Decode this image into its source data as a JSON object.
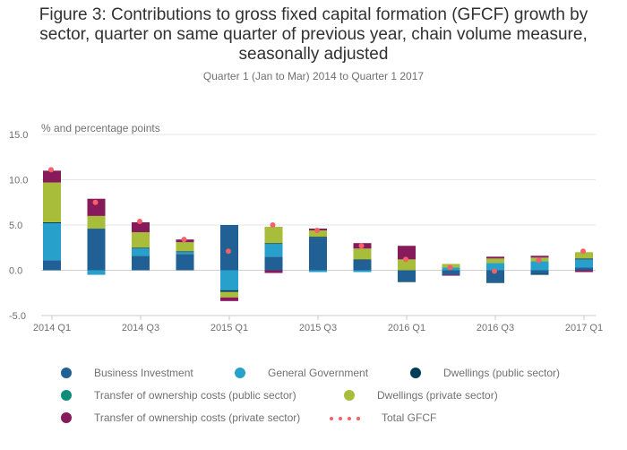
{
  "title": "Figure 3: Contributions to gross fixed capital formation (GFCF) growth by sector, quarter on same quarter of previous year, chain volume measure, seasonally adjusted",
  "subtitle": "Quarter 1 (Jan to Mar) 2014 to Quarter 1 2017",
  "chart_data": {
    "type": "bar",
    "stacked": true,
    "ylabel": "% and percentage points",
    "ylim": [
      -5,
      15
    ],
    "yticks": [
      "15.0",
      "10.0",
      "5.0",
      "0.0",
      "-5.0"
    ],
    "ytick_values": [
      15,
      10,
      5,
      0,
      -5
    ],
    "grid": true,
    "categories": [
      "2014 Q1",
      "2014 Q2",
      "2014 Q3",
      "2014 Q4",
      "2015 Q1",
      "2015 Q2",
      "2015 Q3",
      "2015 Q4",
      "2016 Q1",
      "2016 Q2",
      "2016 Q3",
      "2016 Q4",
      "2017 Q1"
    ],
    "xtick_labels": [
      "2014 Q1",
      "",
      "2014 Q3",
      "",
      "2015 Q1",
      "",
      "2015 Q3",
      "",
      "2016 Q1",
      "",
      "2016 Q3",
      "",
      "2017 Q1"
    ],
    "series": [
      {
        "name": "Business Investment",
        "color": "#206095",
        "values": [
          1.1,
          4.6,
          1.6,
          1.8,
          5.0,
          1.5,
          3.6,
          1.1,
          -1.2,
          -0.5,
          -1.3,
          -0.4,
          0.3
        ]
      },
      {
        "name": "General Government",
        "color": "#27a0cc",
        "values": [
          4.1,
          -0.5,
          0.8,
          0.2,
          -2.2,
          1.4,
          -0.2,
          -0.2,
          0.0,
          0.3,
          0.8,
          1.0,
          0.9
        ]
      },
      {
        "name": "Dwellings (public sector)",
        "color": "#003c57",
        "values": [
          0.1,
          0.0,
          0.1,
          0.1,
          -0.2,
          0.1,
          0.1,
          0.1,
          -0.1,
          0.0,
          -0.1,
          -0.1,
          0.1
        ]
      },
      {
        "name": "Transfer of ownership costs (public sector)",
        "color": "#118c7b",
        "values": [
          0.0,
          0.0,
          0.0,
          0.0,
          0.0,
          0.0,
          0.0,
          0.0,
          0.0,
          0.0,
          0.0,
          0.0,
          0.0
        ]
      },
      {
        "name": "Dwellings (private sector)",
        "color": "#a8bd3a",
        "values": [
          4.4,
          1.4,
          1.7,
          1.0,
          -0.6,
          1.8,
          0.7,
          1.2,
          1.2,
          0.4,
          0.5,
          0.4,
          0.7
        ]
      },
      {
        "name": "Transfer of ownership costs (private sector)",
        "color": "#871a5b",
        "values": [
          1.3,
          1.9,
          1.1,
          0.3,
          -0.4,
          -0.3,
          0.2,
          0.6,
          1.5,
          -0.1,
          0.2,
          0.2,
          -0.2
        ]
      }
    ],
    "total": {
      "name": "Total GFCF",
      "color": "#f66068",
      "values": [
        11.1,
        7.5,
        5.4,
        3.4,
        2.1,
        5.0,
        4.4,
        2.7,
        1.2,
        0.3,
        -0.1,
        1.1,
        2.1
      ]
    },
    "legend_position": "bottom"
  }
}
